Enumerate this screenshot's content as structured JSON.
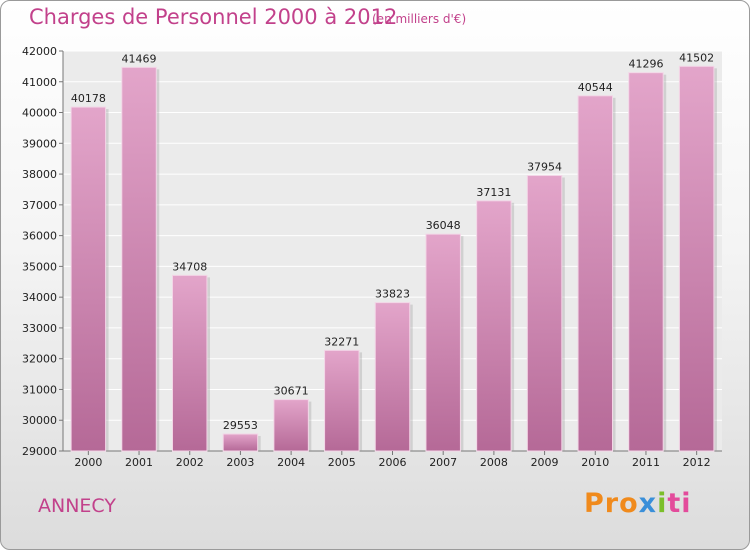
{
  "chart_data": {
    "type": "bar",
    "title": "Charges de Personnel 2000 à 2012",
    "subtitle": "(en milliers d'€)",
    "categories": [
      "2000",
      "2001",
      "2002",
      "2003",
      "2004",
      "2005",
      "2006",
      "2007",
      "2008",
      "2009",
      "2010",
      "2011",
      "2012"
    ],
    "values": [
      40178,
      41469,
      34708,
      29553,
      30671,
      32271,
      33823,
      36048,
      37131,
      37954,
      40544,
      41296,
      41502
    ],
    "ylim": [
      29000,
      42000
    ],
    "yticks": [
      29000,
      30000,
      31000,
      32000,
      33000,
      34000,
      35000,
      36000,
      37000,
      38000,
      39000,
      40000,
      41000,
      42000
    ],
    "grid": true,
    "bar_color": "#d58bb8"
  },
  "location": "ANNECY",
  "logo": {
    "p1": "Pro",
    "p2": "x",
    "p3": "i",
    "p4": "ti"
  }
}
